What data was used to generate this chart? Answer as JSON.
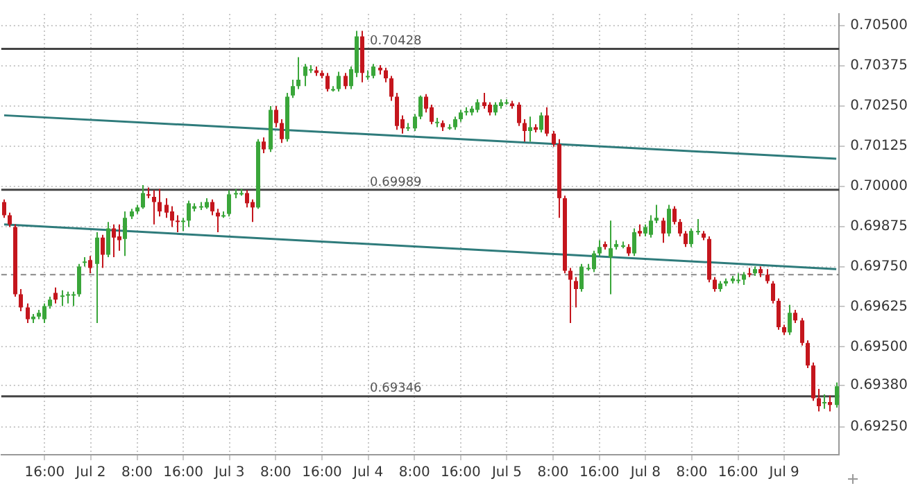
{
  "chart_data": {
    "type": "candlestick",
    "categories": [
      null,
      null,
      null,
      null,
      null,
      null,
      null,
      "16:00",
      null,
      null,
      null,
      null,
      null,
      null,
      null,
      "Jul 2",
      null,
      null,
      null,
      null,
      null,
      null,
      null,
      "8:00",
      null,
      null,
      null,
      null,
      null,
      null,
      null,
      "16:00",
      null,
      null,
      null,
      null,
      null,
      null,
      null,
      "Jul 3",
      null,
      null,
      null,
      null,
      null,
      null,
      null,
      "8:00",
      null,
      null,
      null,
      null,
      null,
      null,
      null,
      "16:00",
      null,
      null,
      null,
      null,
      null,
      null,
      null,
      "Jul 4",
      null,
      null,
      null,
      null,
      null,
      null,
      null,
      "8:00",
      null,
      null,
      null,
      null,
      null,
      null,
      null,
      "16:00",
      null,
      null,
      null,
      null,
      null,
      null,
      null,
      "Jul 5",
      null,
      null,
      null,
      null,
      null,
      null,
      null,
      "8:00",
      null,
      null,
      null,
      null,
      null,
      null,
      null,
      "16:00",
      null,
      null,
      null,
      null,
      null,
      null,
      null,
      "Jul 8",
      null,
      null,
      null,
      null,
      null,
      null,
      null,
      "8:00",
      null,
      null,
      null,
      null,
      null,
      null,
      null,
      "16:00",
      null,
      null,
      null,
      null,
      null,
      null,
      null,
      "Jul 9",
      null,
      null,
      null,
      null,
      null,
      null,
      null,
      null,
      null
    ],
    "ohlc": [
      [
        0.69951,
        0.69959,
        0.69902,
        0.6991
      ],
      [
        0.6991,
        0.69918,
        0.69873,
        0.69881
      ],
      [
        0.69873,
        0.69881,
        0.69656,
        0.69664
      ],
      [
        0.69664,
        0.6968,
        0.69611,
        0.69623
      ],
      [
        0.69623,
        0.69635,
        0.69574,
        0.69586
      ],
      [
        0.69586,
        0.69602,
        0.69574,
        0.69594
      ],
      [
        0.69594,
        0.69615,
        0.69586,
        0.69606
      ],
      [
        0.69586,
        0.69635,
        0.69574,
        0.69627
      ],
      [
        0.69627,
        0.69656,
        0.69619,
        0.69647
      ],
      [
        0.69668,
        0.69685,
        0.69635,
        0.69647
      ],
      [
        0.69656,
        0.69676,
        0.69627,
        0.6966
      ],
      [
        0.6966,
        0.69672,
        0.69635,
        0.69664
      ],
      [
        0.6966,
        0.69672,
        0.69627,
        0.69664
      ],
      [
        0.69664,
        0.69758,
        0.69656,
        0.6975
      ],
      [
        0.69762,
        0.69779,
        0.6975,
        0.69766
      ],
      [
        0.6977,
        0.69783,
        0.69729,
        0.69746
      ],
      [
        0.69758,
        0.69857,
        0.69574,
        0.6984
      ],
      [
        0.6984,
        0.69849,
        0.69746,
        0.69787
      ],
      [
        0.69787,
        0.69889,
        0.69779,
        0.69869
      ],
      [
        0.69869,
        0.69881,
        0.69779,
        0.6984
      ],
      [
        0.69844,
        0.69881,
        0.69799,
        0.69832
      ],
      [
        0.69836,
        0.69922,
        0.69783,
        0.69902
      ],
      [
        0.69906,
        0.6993,
        0.69898,
        0.69922
      ],
      [
        0.69922,
        0.69942,
        0.69914,
        0.69934
      ],
      [
        0.69934,
        0.70004,
        0.6993,
        0.69979
      ],
      [
        0.69975,
        0.69996,
        0.69963,
        0.69971
      ],
      [
        0.69967,
        0.69988,
        0.69881,
        0.69951
      ],
      [
        0.69951,
        0.69992,
        0.69906,
        0.69922
      ],
      [
        0.69942,
        0.69963,
        0.69902,
        0.69918
      ],
      [
        0.69922,
        0.69938,
        0.69873,
        0.69893
      ],
      [
        0.69893,
        0.6991,
        0.69857,
        0.69889
      ],
      [
        0.69889,
        0.69902,
        0.69861,
        0.69893
      ],
      [
        0.69893,
        0.69955,
        0.69873,
        0.69947
      ],
      [
        0.6993,
        0.69947,
        0.69922,
        0.69938
      ],
      [
        0.69934,
        0.69951,
        0.69926,
        0.69938
      ],
      [
        0.69934,
        0.69963,
        0.6993,
        0.69951
      ],
      [
        0.69951,
        0.69959,
        0.6991,
        0.69922
      ],
      [
        0.69918,
        0.6993,
        0.69857,
        0.69906
      ],
      [
        0.6991,
        0.69922,
        0.69902,
        0.6991
      ],
      [
        0.69914,
        0.69988,
        0.69906,
        0.69975
      ],
      [
        0.69975,
        0.69992,
        0.69963,
        0.69979
      ],
      [
        0.69979,
        0.69992,
        0.69971,
        0.69979
      ],
      [
        0.69979,
        0.69988,
        0.69934,
        0.69947
      ],
      [
        0.69951,
        0.69959,
        0.69889,
        0.69934
      ],
      [
        0.69934,
        0.70147,
        0.6993,
        0.70139
      ],
      [
        0.70139,
        0.70152,
        0.70103,
        0.70115
      ],
      [
        0.70115,
        0.7025,
        0.70107,
        0.70238
      ],
      [
        0.70238,
        0.7025,
        0.70184,
        0.70197
      ],
      [
        0.70197,
        0.70209,
        0.70135,
        0.70147
      ],
      [
        0.70147,
        0.70291,
        0.70139,
        0.70279
      ],
      [
        0.70283,
        0.70332,
        0.70275,
        0.70312
      ],
      [
        0.70312,
        0.70402,
        0.70303,
        0.70332
      ],
      [
        0.70344,
        0.70381,
        0.70312,
        0.70373
      ],
      [
        0.70365,
        0.70377,
        0.70353,
        0.70365
      ],
      [
        0.70361,
        0.70373,
        0.70344,
        0.70353
      ],
      [
        0.70353,
        0.70361,
        0.70336,
        0.70344
      ],
      [
        0.70344,
        0.70353,
        0.70295,
        0.70303
      ],
      [
        0.70303,
        0.70312,
        0.70295,
        0.70303
      ],
      [
        0.70303,
        0.70357,
        0.70295,
        0.70344
      ],
      [
        0.70344,
        0.70353,
        0.70303,
        0.70312
      ],
      [
        0.70312,
        0.70373,
        0.70303,
        0.70365
      ],
      [
        0.70353,
        0.70484,
        0.7034,
        0.70467
      ],
      [
        0.70467,
        0.70484,
        0.70324,
        0.70353
      ],
      [
        0.70344,
        0.70361,
        0.70332,
        0.70344
      ],
      [
        0.70344,
        0.70381,
        0.70336,
        0.70373
      ],
      [
        0.70369,
        0.70377,
        0.70348,
        0.70361
      ],
      [
        0.70361,
        0.70369,
        0.70324,
        0.70336
      ],
      [
        0.70336,
        0.70344,
        0.70266,
        0.70279
      ],
      [
        0.70279,
        0.70291,
        0.70176,
        0.70188
      ],
      [
        0.70209,
        0.70221,
        0.70164,
        0.7018
      ],
      [
        0.70184,
        0.70197,
        0.70172,
        0.70184
      ],
      [
        0.7018,
        0.70225,
        0.70172,
        0.70217
      ],
      [
        0.70217,
        0.70283,
        0.70209,
        0.70279
      ],
      [
        0.70279,
        0.70287,
        0.7023,
        0.70242
      ],
      [
        0.70246,
        0.70254,
        0.70193,
        0.70201
      ],
      [
        0.70201,
        0.70213,
        0.70184,
        0.70201
      ],
      [
        0.70197,
        0.70205,
        0.70172,
        0.70184
      ],
      [
        0.70184,
        0.70193,
        0.70176,
        0.70184
      ],
      [
        0.70184,
        0.70217,
        0.70176,
        0.70209
      ],
      [
        0.70209,
        0.70238,
        0.70201,
        0.7023
      ],
      [
        0.70234,
        0.70246,
        0.70221,
        0.70234
      ],
      [
        0.7023,
        0.7025,
        0.70221,
        0.70242
      ],
      [
        0.70238,
        0.70271,
        0.7023,
        0.70262
      ],
      [
        0.70262,
        0.70291,
        0.70242,
        0.7025
      ],
      [
        0.70254,
        0.70262,
        0.70221,
        0.7023
      ],
      [
        0.7023,
        0.70262,
        0.70221,
        0.70254
      ],
      [
        0.7025,
        0.70271,
        0.70242,
        0.70262
      ],
      [
        0.70262,
        0.70271,
        0.70254,
        0.70262
      ],
      [
        0.70258,
        0.70266,
        0.70242,
        0.7025
      ],
      [
        0.70254,
        0.70262,
        0.70188,
        0.70197
      ],
      [
        0.70197,
        0.70209,
        0.70139,
        0.70172
      ],
      [
        0.70172,
        0.70217,
        0.70139,
        0.70184
      ],
      [
        0.70184,
        0.70193,
        0.70168,
        0.70176
      ],
      [
        0.70176,
        0.7023,
        0.70168,
        0.70221
      ],
      [
        0.70221,
        0.70246,
        0.70156,
        0.70164
      ],
      [
        0.70164,
        0.70172,
        0.70123,
        0.70131
      ],
      [
        0.70131,
        0.70147,
        0.69902,
        0.69963
      ],
      [
        0.69963,
        0.69971,
        0.69729,
        0.69737
      ],
      [
        0.69737,
        0.69746,
        0.69574,
        0.69709
      ],
      [
        0.69705,
        0.69717,
        0.69623,
        0.6968
      ],
      [
        0.6968,
        0.69758,
        0.69672,
        0.6975
      ],
      [
        0.69746,
        0.69758,
        0.69737,
        0.69746
      ],
      [
        0.69742,
        0.69799,
        0.69733,
        0.69791
      ],
      [
        0.69791,
        0.69832,
        0.69783,
        0.69811
      ],
      [
        0.6982,
        0.69828,
        0.69803,
        0.69811
      ],
      [
        0.69779,
        0.69893,
        0.69664,
        0.69807
      ],
      [
        0.69811,
        0.69832,
        0.69803,
        0.6982
      ],
      [
        0.69816,
        0.69828,
        0.69807,
        0.69816
      ],
      [
        0.69811,
        0.6982,
        0.69783,
        0.69791
      ],
      [
        0.69791,
        0.69869,
        0.69783,
        0.69857
      ],
      [
        0.69861,
        0.69881,
        0.69844,
        0.69853
      ],
      [
        0.69853,
        0.69881,
        0.69844,
        0.69873
      ],
      [
        0.69849,
        0.6991,
        0.6984,
        0.69893
      ],
      [
        0.69893,
        0.69942,
        0.69885,
        0.69902
      ],
      [
        0.69893,
        0.69902,
        0.69824,
        0.69853
      ],
      [
        0.69853,
        0.69942,
        0.69844,
        0.6993
      ],
      [
        0.6993,
        0.69938,
        0.69881,
        0.69889
      ],
      [
        0.69889,
        0.69898,
        0.69844,
        0.69853
      ],
      [
        0.69853,
        0.69861,
        0.69811,
        0.6982
      ],
      [
        0.6982,
        0.69869,
        0.69811,
        0.69861
      ],
      [
        0.69861,
        0.69898,
        0.69849,
        0.69861
      ],
      [
        0.69853,
        0.69861,
        0.69832,
        0.6984
      ],
      [
        0.69836,
        0.69844,
        0.69701,
        0.69709
      ],
      [
        0.69709,
        0.69717,
        0.69672,
        0.6968
      ],
      [
        0.6968,
        0.69705,
        0.69672,
        0.69697
      ],
      [
        0.69697,
        0.69713,
        0.69689,
        0.69705
      ],
      [
        0.69705,
        0.69721,
        0.69697,
        0.69713
      ],
      [
        0.69709,
        0.69729,
        0.69697,
        0.69709
      ],
      [
        0.69709,
        0.69733,
        0.69693,
        0.69725
      ],
      [
        0.69729,
        0.69746,
        0.69717,
        0.69725
      ],
      [
        0.69729,
        0.6975,
        0.69721,
        0.69742
      ],
      [
        0.69742,
        0.6975,
        0.69717,
        0.69729
      ],
      [
        0.69725,
        0.69742,
        0.69697,
        0.69705
      ],
      [
        0.69697,
        0.69705,
        0.69635,
        0.69643
      ],
      [
        0.69643,
        0.69651,
        0.69553,
        0.69561
      ],
      [
        0.69561,
        0.69569,
        0.69537,
        0.69545
      ],
      [
        0.69545,
        0.69631,
        0.69537,
        0.69606
      ],
      [
        0.69606,
        0.69615,
        0.69574,
        0.69582
      ],
      [
        0.69582,
        0.6959,
        0.69504,
        0.69512
      ],
      [
        0.69512,
        0.6952,
        0.69434,
        0.69442
      ],
      [
        0.69442,
        0.69451,
        0.69332,
        0.6934
      ],
      [
        0.6934,
        0.69369,
        0.69299,
        0.69315
      ],
      [
        0.69328,
        0.69352,
        0.69307,
        0.69328
      ],
      [
        0.69328,
        0.69348,
        0.69299,
        0.69319
      ],
      [
        0.69319,
        0.69389,
        0.69311,
        0.69377
      ]
    ],
    "series": [
      {
        "type": "line",
        "color": "#2e7b7b",
        "values": [
          0.70221,
          null,
          null,
          null,
          null,
          null,
          null,
          null,
          null,
          null,
          null,
          null,
          null,
          null,
          null,
          null,
          null,
          null,
          null,
          null,
          null,
          null,
          null,
          null,
          null,
          null,
          null,
          null,
          null,
          null,
          null,
          null,
          null,
          null,
          null,
          null,
          null,
          null,
          null,
          null,
          null,
          null,
          null,
          null,
          null,
          null,
          null,
          null,
          null,
          null,
          null,
          null,
          null,
          null,
          null,
          null,
          null,
          null,
          null,
          null,
          null,
          null,
          null,
          null,
          null,
          null,
          null,
          null,
          null,
          null,
          null,
          null,
          null,
          null,
          null,
          null,
          null,
          null,
          null,
          null,
          null,
          null,
          null,
          null,
          null,
          null,
          null,
          null,
          null,
          null,
          null,
          null,
          null,
          null,
          null,
          null,
          null,
          null,
          null,
          null,
          null,
          null,
          null,
          null,
          null,
          null,
          null,
          null,
          null,
          null,
          null,
          null,
          null,
          null,
          null,
          null,
          null,
          null,
          null,
          null,
          null,
          null,
          null,
          null,
          null,
          null,
          null,
          null,
          null,
          null,
          null,
          null,
          null,
          null,
          null,
          null,
          null,
          null,
          null,
          null,
          null,
          null,
          null,
          null,
          0.70086
        ]
      },
      {
        "type": "line",
        "color": "#2e7b7b",
        "values": [
          0.69881,
          null,
          null,
          null,
          null,
          null,
          null,
          null,
          null,
          null,
          null,
          null,
          null,
          null,
          null,
          null,
          null,
          null,
          null,
          null,
          null,
          null,
          null,
          null,
          null,
          null,
          null,
          null,
          null,
          null,
          null,
          null,
          null,
          null,
          null,
          null,
          null,
          null,
          null,
          null,
          null,
          null,
          null,
          null,
          null,
          null,
          null,
          null,
          null,
          null,
          null,
          null,
          null,
          null,
          null,
          null,
          null,
          null,
          null,
          null,
          null,
          null,
          null,
          null,
          null,
          null,
          null,
          null,
          null,
          null,
          null,
          null,
          null,
          null,
          null,
          null,
          null,
          null,
          null,
          null,
          null,
          null,
          null,
          null,
          null,
          null,
          null,
          null,
          null,
          null,
          null,
          null,
          null,
          null,
          null,
          null,
          null,
          null,
          null,
          null,
          null,
          null,
          null,
          null,
          null,
          null,
          null,
          null,
          null,
          null,
          null,
          null,
          null,
          null,
          null,
          null,
          null,
          null,
          null,
          null,
          null,
          null,
          null,
          null,
          null,
          null,
          null,
          null,
          null,
          null,
          null,
          null,
          null,
          null,
          null,
          null,
          null,
          null,
          null,
          null,
          null,
          null,
          null,
          null,
          0.69742
        ]
      }
    ],
    "ylim": [
      0.69164,
      0.70537
    ],
    "yticks": [
      {
        "value": 0.6925,
        "label": "0.69250"
      },
      {
        "value": 0.6938,
        "label": "0.69380"
      },
      {
        "value": 0.695,
        "label": "0.69500"
      },
      {
        "value": 0.69625,
        "label": "0.69625"
      },
      {
        "value": 0.6975,
        "label": "0.69750"
      },
      {
        "value": 0.69875,
        "label": "0.69875"
      },
      {
        "value": 0.7,
        "label": "0.70000"
      },
      {
        "value": 0.70125,
        "label": "0.70125"
      },
      {
        "value": 0.7025,
        "label": "0.70250"
      },
      {
        "value": 0.70375,
        "label": "0.70375"
      },
      {
        "value": 0.705,
        "label": "0.70500"
      }
    ],
    "ref_lines": [
      {
        "axis": "y",
        "value": 0.70428,
        "label": "0.70428",
        "color": "#444444"
      },
      {
        "axis": "y",
        "value": 0.69989,
        "label": "0.69989",
        "color": "#444444"
      },
      {
        "axis": "y",
        "value": 0.69346,
        "label": "0.69346",
        "color": "#444444"
      },
      {
        "axis": "y",
        "value": 0.69725,
        "color": "#888888",
        "line_style": "dashed"
      }
    ],
    "grid": true
  }
}
